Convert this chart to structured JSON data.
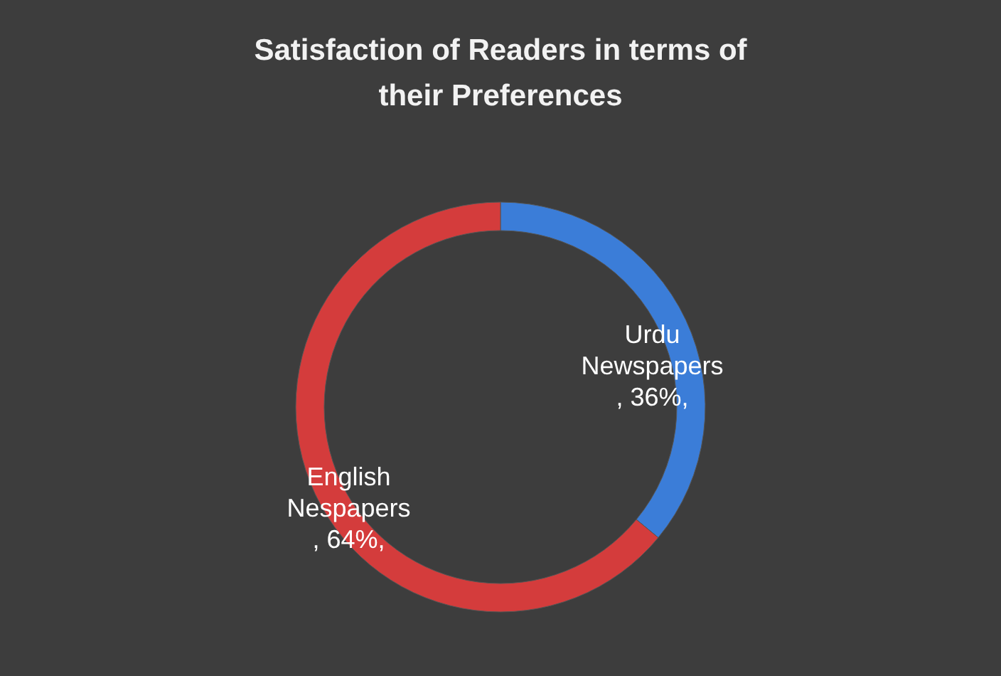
{
  "chart_data": {
    "type": "donut",
    "title": "Satisfaction of Readers in terms of their Preferences",
    "categories": [
      "Urdu Newspapers",
      "English Nespapers"
    ],
    "values": [
      36,
      64
    ],
    "colors": [
      "#3b7dd8",
      "#d43c3c"
    ],
    "value_labels": [
      ", 36%,",
      ", 64%,"
    ]
  }
}
